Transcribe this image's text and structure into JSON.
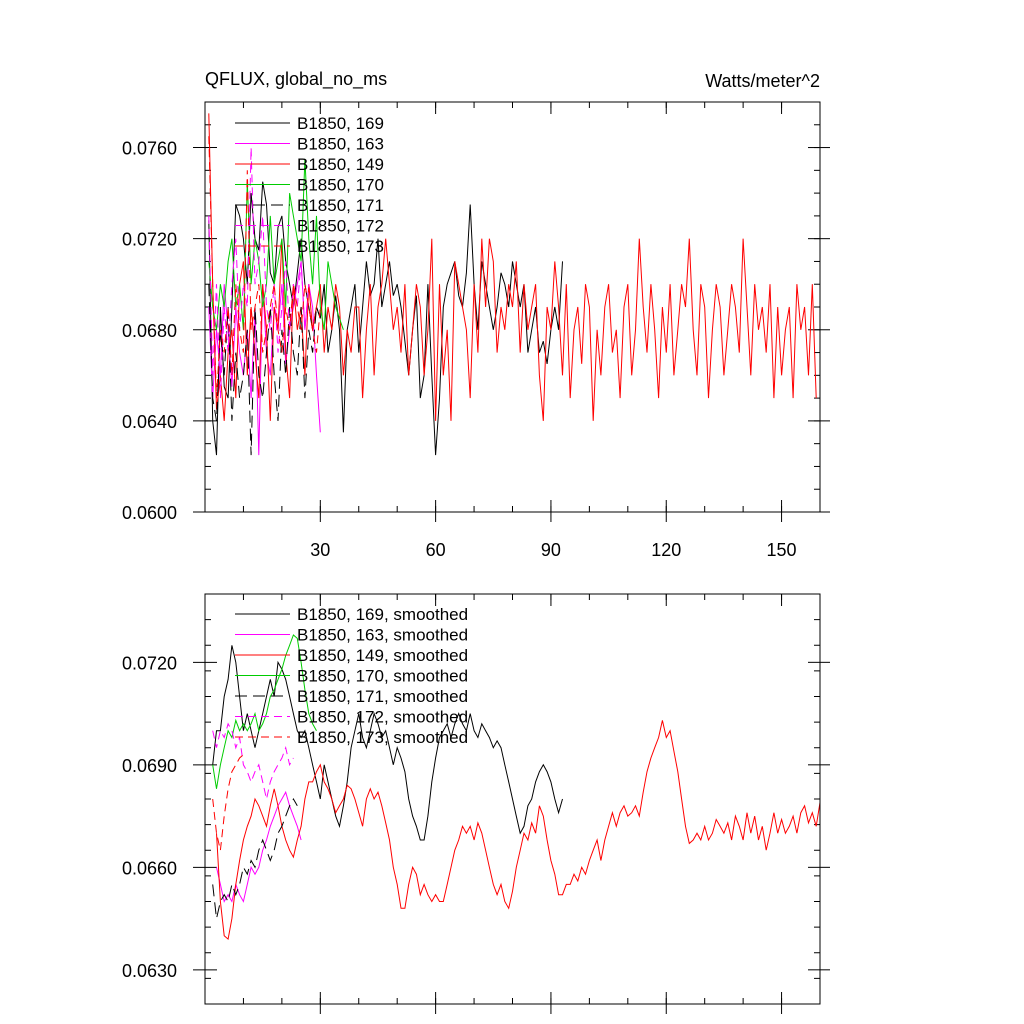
{
  "chart_data": [
    {
      "type": "line",
      "title": "QFLUX, global_no_ms",
      "units": "Watts/meter^2",
      "xlim": [
        0,
        160
      ],
      "ylim": [
        0.06,
        0.078
      ],
      "x_ticks": [
        30,
        60,
        90,
        120,
        150
      ],
      "y_ticks": [
        0.06,
        0.064,
        0.068,
        0.072,
        0.076
      ],
      "x_tick_labels": [
        "30",
        "60",
        "90",
        "120",
        "150"
      ],
      "y_tick_labels": [
        "0.0600",
        "0.0640",
        "0.0680",
        "0.0720",
        "0.0760"
      ],
      "legend_position": "top-left",
      "series": [
        {
          "name": "B1850, 169",
          "color": "#000000",
          "dash": "solid",
          "x0": 1,
          "values": [
            0.0728,
            0.064,
            0.0625,
            0.069,
            0.0655,
            0.065,
            0.069,
            0.0735,
            0.073,
            0.072,
            0.07,
            0.074,
            0.072,
            0.0715,
            0.0745,
            0.0735,
            0.0705,
            0.07,
            0.0725,
            0.073,
            0.071,
            0.07,
            0.069,
            0.0705,
            0.072,
            0.07,
            0.069,
            0.068,
            0.069,
            0.0685,
            0.07,
            0.067,
            0.068,
            0.0695,
            0.068,
            0.0635,
            0.068,
            0.069,
            0.07,
            0.067,
            0.069,
            0.071,
            0.0695,
            0.07,
            0.072,
            0.069,
            0.07,
            0.071,
            0.0695,
            0.07,
            0.069,
            0.0675,
            0.066,
            0.068,
            0.0695,
            0.065,
            0.066,
            0.07,
            0.066,
            0.0625,
            0.065,
            0.069,
            0.07,
            0.0705,
            0.071,
            0.0695,
            0.069,
            0.0705,
            0.0735,
            0.07,
            0.068,
            0.071,
            0.07,
            0.069,
            0.068,
            0.069,
            0.0705,
            0.07,
            0.069,
            0.071,
            0.07,
            0.069,
            0.07,
            0.067,
            0.068,
            0.069,
            0.067,
            0.0675,
            0.0665,
            0.068,
            0.069,
            0.068,
            0.071
          ]
        },
        {
          "name": "B1850, 163",
          "color": "#ff00ff",
          "dash": "solid",
          "x0": 1,
          "values": [
            0.069,
            0.065,
            0.068,
            0.066,
            0.07,
            0.068,
            0.0655,
            0.069,
            0.067,
            0.066,
            0.068,
            0.065,
            0.069,
            0.0625,
            0.07,
            0.067,
            0.066,
            0.069,
            0.068,
            0.07,
            0.0665,
            0.068,
            0.069,
            0.07,
            0.071,
            0.068,
            0.07,
            0.069,
            0.066,
            0.0635
          ]
        },
        {
          "name": "B1850, 149",
          "color": "#ff0000",
          "dash": "solid",
          "x0": 1,
          "values": [
            0.0775,
            0.07,
            0.0645,
            0.066,
            0.064,
            0.067,
            0.068,
            0.065,
            0.07,
            0.071,
            0.066,
            0.069,
            0.067,
            0.065,
            0.07,
            0.068,
            0.064,
            0.069,
            0.068,
            0.072,
            0.067,
            0.065,
            0.07,
            0.068,
            0.069,
            0.066,
            0.07,
            0.068,
            0.069,
            0.07,
            0.067,
            0.069,
            0.068,
            0.07,
            0.069,
            0.066,
            0.068,
            0.067,
            0.069,
            0.069,
            0.065,
            0.068,
            0.07,
            0.066,
            0.069,
            0.07,
            0.072,
            0.07,
            0.068,
            0.069,
            0.067,
            0.07,
            0.066,
            0.068,
            0.07,
            0.069,
            0.066,
            0.068,
            0.072,
            0.064,
            0.07,
            0.066,
            0.068,
            0.064,
            0.071,
            0.07,
            0.069,
            0.068,
            0.065,
            0.07,
            0.067,
            0.072,
            0.069,
            0.072,
            0.071,
            0.067,
            0.069,
            0.068,
            0.07,
            0.069,
            0.071,
            0.067,
            0.07,
            0.068,
            0.069,
            0.07,
            0.066,
            0.064,
            0.069,
            0.068,
            0.071,
            0.069,
            0.066,
            0.07,
            0.065,
            0.068,
            0.069,
            0.0665,
            0.07,
            0.069,
            0.064,
            0.068,
            0.066,
            0.069,
            0.07,
            0.067,
            0.068,
            0.065,
            0.069,
            0.07,
            0.066,
            0.068,
            0.072,
            0.069,
            0.067,
            0.07,
            0.068,
            0.065,
            0.069,
            0.067,
            0.07,
            0.066,
            0.068,
            0.07,
            0.069,
            0.072,
            0.068,
            0.066,
            0.07,
            0.069,
            0.065,
            0.068,
            0.07,
            0.069,
            0.066,
            0.068,
            0.07,
            0.069,
            0.067,
            0.072,
            0.069,
            0.066,
            0.07,
            0.068,
            0.069,
            0.067,
            0.07,
            0.065,
            0.069,
            0.066,
            0.068,
            0.069,
            0.065,
            0.07,
            0.068,
            0.069,
            0.066,
            0.07,
            0.065
          ]
        },
        {
          "name": "B1850, 170",
          "color": "#00cc00",
          "dash": "solid",
          "x0": 1,
          "values": [
            0.071,
            0.069,
            0.068,
            0.07,
            0.069,
            0.071,
            0.072,
            0.069,
            0.07,
            0.068,
            0.0745,
            0.07,
            0.072,
            0.071,
            0.069,
            0.07,
            0.073,
            0.07,
            0.071,
            0.072,
            0.069,
            0.074,
            0.073,
            0.072,
            0.071,
            0.0755,
            0.072,
            0.07,
            0.073,
            0.069,
            0.068,
            0.071,
            0.07,
            0.069,
            0.0685,
            0.068
          ]
        },
        {
          "name": "B1850, 171",
          "color": "#000000",
          "dash": "longdash",
          "x0": 1,
          "values": [
            0.07,
            0.065,
            0.064,
            0.068,
            0.066,
            0.069,
            0.064,
            0.067,
            0.065,
            0.066,
            0.068,
            0.0625,
            0.069,
            0.066,
            0.065,
            0.067,
            0.069,
            0.066,
            0.064,
            0.068,
            0.066,
            0.069,
            0.067,
            0.066,
            0.069,
            0.065,
            0.068,
            0.067,
            0.069,
            0.0685
          ]
        },
        {
          "name": "B1850, 172",
          "color": "#ff00ff",
          "dash": "dashed",
          "x0": 1,
          "values": [
            0.073,
            0.066,
            0.07,
            0.065,
            0.069,
            0.067,
            0.07,
            0.072,
            0.068,
            0.07,
            0.069,
            0.076,
            0.07,
            0.071,
            0.073,
            0.069,
            0.068,
            0.07,
            0.067,
            0.069,
            0.071,
            0.068,
            0.07,
            0.069,
            0.071,
            0.068,
            0.07
          ]
        },
        {
          "name": "B1850, 173",
          "color": "#ff0000",
          "dash": "dashed",
          "x0": 1,
          "values": [
            0.0765,
            0.07,
            0.065,
            0.068,
            0.067,
            0.069,
            0.066,
            0.07,
            0.068,
            0.067,
            0.075,
            0.068,
            0.069,
            0.07,
            0.067,
            0.068,
            0.069,
            0.07,
            0.068,
            0.067,
            0.069,
            0.068,
            0.07,
            0.069,
            0.068,
            0.07,
            0.069,
            0.068,
            0.067,
            0.069
          ]
        }
      ]
    },
    {
      "type": "line",
      "title": "",
      "xlim": [
        0,
        160
      ],
      "ylim": [
        0.062,
        0.074
      ],
      "x_ticks": [
        30,
        60,
        90,
        120,
        150
      ],
      "y_ticks": [
        0.063,
        0.066,
        0.069,
        0.072
      ],
      "y_tick_labels": [
        "0.0630",
        "0.0660",
        "0.0690",
        "0.0720"
      ],
      "legend_position": "top-left",
      "series": [
        {
          "name": "B1850, 169, smoothed",
          "color": "#000000",
          "dash": "solid",
          "x0": 2,
          "values": [
            0.069,
            0.07,
            0.07,
            0.071,
            0.0715,
            0.0725,
            0.072,
            0.071,
            0.07,
            0.0705,
            0.07,
            0.0695,
            0.07,
            0.0705,
            0.071,
            0.0715,
            0.071,
            0.072,
            0.0718,
            0.0715,
            0.071,
            0.0705,
            0.07,
            0.0698,
            0.07,
            0.0695,
            0.069,
            0.0685,
            0.068,
            0.069,
            0.0685,
            0.068,
            0.0675,
            0.0672,
            0.0678,
            0.0685,
            0.0695,
            0.07,
            0.0705,
            0.0698,
            0.0695,
            0.07,
            0.0705,
            0.0702,
            0.0698,
            0.07,
            0.0695,
            0.069,
            0.0695,
            0.0692,
            0.0688,
            0.068,
            0.0675,
            0.0672,
            0.0668,
            0.0668,
            0.0675,
            0.0685,
            0.0692,
            0.0698,
            0.07,
            0.0702,
            0.0698,
            0.0702,
            0.0705,
            0.0702,
            0.07,
            0.0705,
            0.07,
            0.0698,
            0.0702,
            0.07,
            0.0698,
            0.0695,
            0.0697,
            0.0695,
            0.069,
            0.0685,
            0.068,
            0.0675,
            0.067,
            0.0672,
            0.0678,
            0.068,
            0.0685,
            0.0688,
            0.069,
            0.0688,
            0.0685,
            0.068,
            0.0676,
            0.068
          ]
        },
        {
          "name": "B1850, 163, smoothed",
          "color": "#ff00ff",
          "dash": "solid",
          "x0": 3,
          "values": [
            0.066,
            0.0655,
            0.065,
            0.0652,
            0.065,
            0.0655,
            0.0652,
            0.065,
            0.0655,
            0.066,
            0.0658,
            0.066,
            0.0665,
            0.0668,
            0.0672,
            0.0675,
            0.0678,
            0.068,
            0.0682,
            0.0678,
            0.0675,
            0.0672,
            0.0668
          ]
        },
        {
          "name": "B1850, 149, smoothed",
          "color": "#ff0000",
          "dash": "solid",
          "x0": 3,
          "values": [
            0.067,
            0.065,
            0.064,
            0.0639,
            0.0645,
            0.0655,
            0.0662,
            0.0668,
            0.0672,
            0.0675,
            0.068,
            0.0678,
            0.0675,
            0.0672,
            0.0678,
            0.0683,
            0.0678,
            0.0672,
            0.0668,
            0.0665,
            0.0663,
            0.0668,
            0.0672,
            0.068,
            0.0685,
            0.0685,
            0.0688,
            0.069,
            0.0685,
            0.0683,
            0.068,
            0.0676,
            0.0678,
            0.068,
            0.0684,
            0.0683,
            0.068,
            0.0676,
            0.0672,
            0.068,
            0.0683,
            0.068,
            0.0682,
            0.0678,
            0.0673,
            0.0668,
            0.066,
            0.0655,
            0.0648,
            0.0648,
            0.0655,
            0.066,
            0.0658,
            0.0652,
            0.0655,
            0.0652,
            0.065,
            0.0652,
            0.065,
            0.065,
            0.0655,
            0.066,
            0.0665,
            0.0668,
            0.0672,
            0.067,
            0.0672,
            0.0668,
            0.0673,
            0.067,
            0.0665,
            0.066,
            0.0655,
            0.0652,
            0.0655,
            0.065,
            0.0648,
            0.0653,
            0.066,
            0.0665,
            0.067,
            0.0668,
            0.0673,
            0.067,
            0.0678,
            0.0675,
            0.0668,
            0.0662,
            0.0658,
            0.0652,
            0.0652,
            0.0655,
            0.0655,
            0.0658,
            0.0656,
            0.066,
            0.0658,
            0.0662,
            0.0665,
            0.0668,
            0.0662,
            0.0668,
            0.0672,
            0.0676,
            0.0672,
            0.0676,
            0.0678,
            0.0675,
            0.0676,
            0.0678,
            0.0675,
            0.0682,
            0.0688,
            0.0692,
            0.0695,
            0.0698,
            0.0703,
            0.0698,
            0.07,
            0.0694,
            0.0688,
            0.068,
            0.0672,
            0.0667,
            0.0668,
            0.067,
            0.0668,
            0.0672,
            0.0668,
            0.067,
            0.0674,
            0.0672,
            0.067,
            0.0673,
            0.0668,
            0.0675,
            0.0672,
            0.0668,
            0.0676,
            0.067,
            0.0675,
            0.0668,
            0.0672,
            0.0665,
            0.067,
            0.0676,
            0.067,
            0.0674,
            0.067,
            0.0672,
            0.0675,
            0.067,
            0.0676,
            0.0678,
            0.0673,
            0.0676,
            0.0672,
            0.0679,
            0.0674,
            0.067,
            0.0672,
            0.067
          ]
        },
        {
          "name": "B1850, 170, smoothed",
          "color": "#00cc00",
          "dash": "solid",
          "x0": 2,
          "values": [
            0.069,
            0.0683,
            0.069,
            0.0695,
            0.07,
            0.0698,
            0.0703,
            0.07,
            0.0702,
            0.07,
            0.0702,
            0.0705,
            0.07,
            0.0702,
            0.0705,
            0.071,
            0.0712,
            0.0715,
            0.0718,
            0.0722,
            0.0725,
            0.0728,
            0.0727,
            0.072,
            0.0712,
            0.0705,
            0.0702,
            0.07
          ]
        },
        {
          "name": "B1850, 171, smoothed",
          "color": "#000000",
          "dash": "longdash",
          "x0": 2,
          "values": [
            0.0655,
            0.0645,
            0.065,
            0.0652,
            0.065,
            0.0655,
            0.0652,
            0.0655,
            0.066,
            0.0658,
            0.0662,
            0.066,
            0.0665,
            0.0668,
            0.0665,
            0.0662,
            0.0665,
            0.067,
            0.0672,
            0.0675,
            0.0678,
            0.068,
            0.0678
          ]
        },
        {
          "name": "B1850, 172, smoothed",
          "color": "#ff00ff",
          "dash": "dashed",
          "x0": 2,
          "values": [
            0.07,
            0.0695,
            0.07,
            0.0698,
            0.0702,
            0.07,
            0.0695,
            0.0698,
            0.069,
            0.0688,
            0.0685,
            0.0688,
            0.069,
            0.0685,
            0.068,
            0.0685,
            0.0688,
            0.069,
            0.0692,
            0.0695,
            0.069,
            0.0692
          ]
        },
        {
          "name": "B1850, 173, smoothed",
          "color": "#ff0000",
          "dash": "dashed",
          "x0": 2,
          "values": [
            0.068,
            0.067,
            0.0665,
            0.0675,
            0.0683,
            0.0688,
            0.069,
            0.0692,
            0.0693
          ]
        }
      ]
    }
  ]
}
